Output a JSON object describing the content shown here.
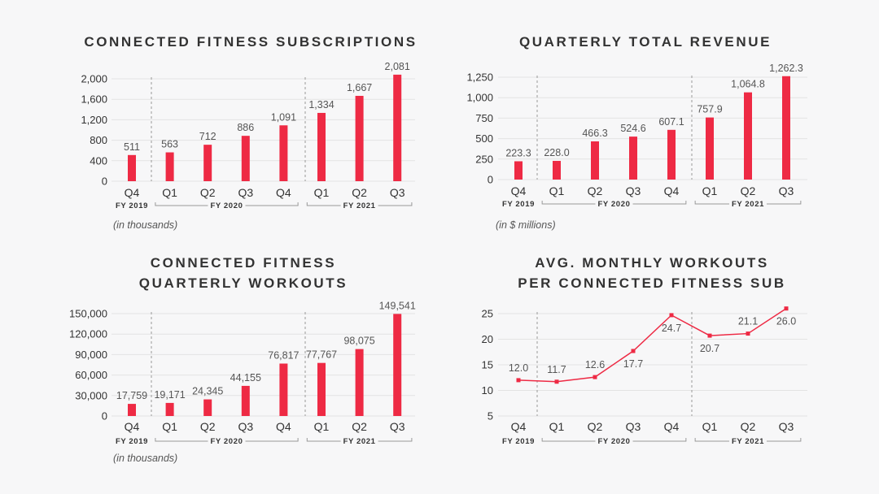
{
  "colors": {
    "accent": "#ee2a44",
    "text": "#333333",
    "label": "#555555",
    "grid": "#e3e3e3",
    "divider": "#999999"
  },
  "chart_data": [
    {
      "type": "bar",
      "title": [
        "CONNECTED FITNESS SUBSCRIPTIONS"
      ],
      "unit_note": "(in thousands)",
      "categories": [
        "Q4",
        "Q1",
        "Q2",
        "Q3",
        "Q4",
        "Q1",
        "Q2",
        "Q3"
      ],
      "values": [
        511,
        563,
        712,
        886,
        1091,
        1334,
        1667,
        2081
      ],
      "value_labels": [
        "511",
        "563",
        "712",
        "886",
        "1,091",
        "1,334",
        "1,667",
        "2,081"
      ],
      "yticks": [
        "0",
        "400",
        "800",
        "1,200",
        "1,600",
        "2,000"
      ],
      "ytick_values": [
        0,
        400,
        800,
        1200,
        1600,
        2000
      ],
      "ylim": [
        0,
        2000
      ],
      "fiscal_years": [
        "FY 2019",
        "FY 2020",
        "FY 2021"
      ]
    },
    {
      "type": "bar",
      "title": [
        "QUARTERLY TOTAL REVENUE"
      ],
      "unit_note": "(in $ millions)",
      "categories": [
        "Q4",
        "Q1",
        "Q2",
        "Q3",
        "Q4",
        "Q1",
        "Q2",
        "Q3"
      ],
      "values": [
        223.3,
        228.0,
        466.3,
        524.6,
        607.1,
        757.9,
        1064.8,
        1262.3
      ],
      "value_labels": [
        "223.3",
        "228.0",
        "466.3",
        "524.6",
        "607.1",
        "757.9",
        "1,064.8",
        "1,262.3"
      ],
      "yticks": [
        "0",
        "250",
        "500",
        "750",
        "1,000",
        "1,250"
      ],
      "ytick_values": [
        0,
        250,
        500,
        750,
        1000,
        1250
      ],
      "ylim": [
        0,
        1250
      ],
      "fiscal_years": [
        "FY 2019",
        "FY 2020",
        "FY 2021"
      ]
    },
    {
      "type": "bar",
      "title": [
        "CONNECTED FITNESS",
        "QUARTERLY WORKOUTS"
      ],
      "unit_note": "(in thousands)",
      "categories": [
        "Q4",
        "Q1",
        "Q2",
        "Q3",
        "Q4",
        "Q1",
        "Q2",
        "Q3"
      ],
      "values": [
        17759,
        19171,
        24345,
        44155,
        76817,
        77767,
        98075,
        149541
      ],
      "value_labels": [
        "17,759",
        "19,171",
        "24,345",
        "44,155",
        "76,817",
        "77,767",
        "98,075",
        "149,541"
      ],
      "yticks": [
        "0",
        "30,000",
        "60,000",
        "90,000",
        "120,000",
        "150,000"
      ],
      "ytick_values": [
        0,
        30000,
        60000,
        90000,
        120000,
        150000
      ],
      "ylim": [
        0,
        150000
      ],
      "fiscal_years": [
        "FY 2019",
        "FY 2020",
        "FY 2021"
      ]
    },
    {
      "type": "line",
      "title": [
        "AVG. MONTHLY WORKOUTS",
        "PER CONNECTED FITNESS SUB"
      ],
      "unit_note": "",
      "categories": [
        "Q4",
        "Q1",
        "Q2",
        "Q3",
        "Q4",
        "Q1",
        "Q2",
        "Q3"
      ],
      "values": [
        12.0,
        11.7,
        12.6,
        17.7,
        24.7,
        20.7,
        21.1,
        26.0
      ],
      "value_labels": [
        "12.0",
        "11.7",
        "12.6",
        "17.7",
        "24.7",
        "20.7",
        "21.1",
        "26.0"
      ],
      "yticks": [
        "5",
        "10",
        "15",
        "20",
        "25"
      ],
      "ytick_values": [
        5,
        10,
        15,
        20,
        25
      ],
      "ylim": [
        5,
        25
      ],
      "fiscal_years": [
        "FY 2019",
        "FY 2020",
        "FY 2021"
      ]
    }
  ]
}
